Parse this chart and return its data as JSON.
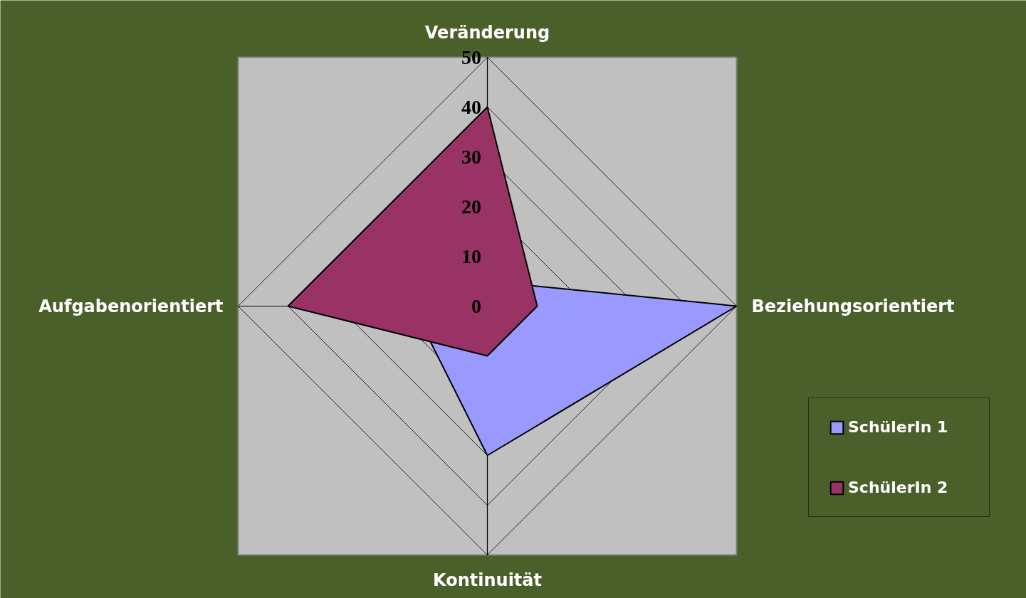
{
  "chart_data": {
    "type": "radar",
    "categories": [
      "Veränderung",
      "Beziehungsorientiert",
      "Kontinuität",
      "Aufgabenorientiert"
    ],
    "series": [
      {
        "name": "SchülerIn 1",
        "color": "#9999ff",
        "values": [
          5,
          50,
          30,
          15
        ]
      },
      {
        "name": "SchülerIn 2",
        "color": "#993366",
        "values": [
          40,
          10,
          10,
          40
        ]
      }
    ],
    "ylim": [
      0,
      50
    ],
    "yticks": [
      0,
      10,
      20,
      30,
      40,
      50
    ],
    "grid": true,
    "legend": "right"
  }
}
